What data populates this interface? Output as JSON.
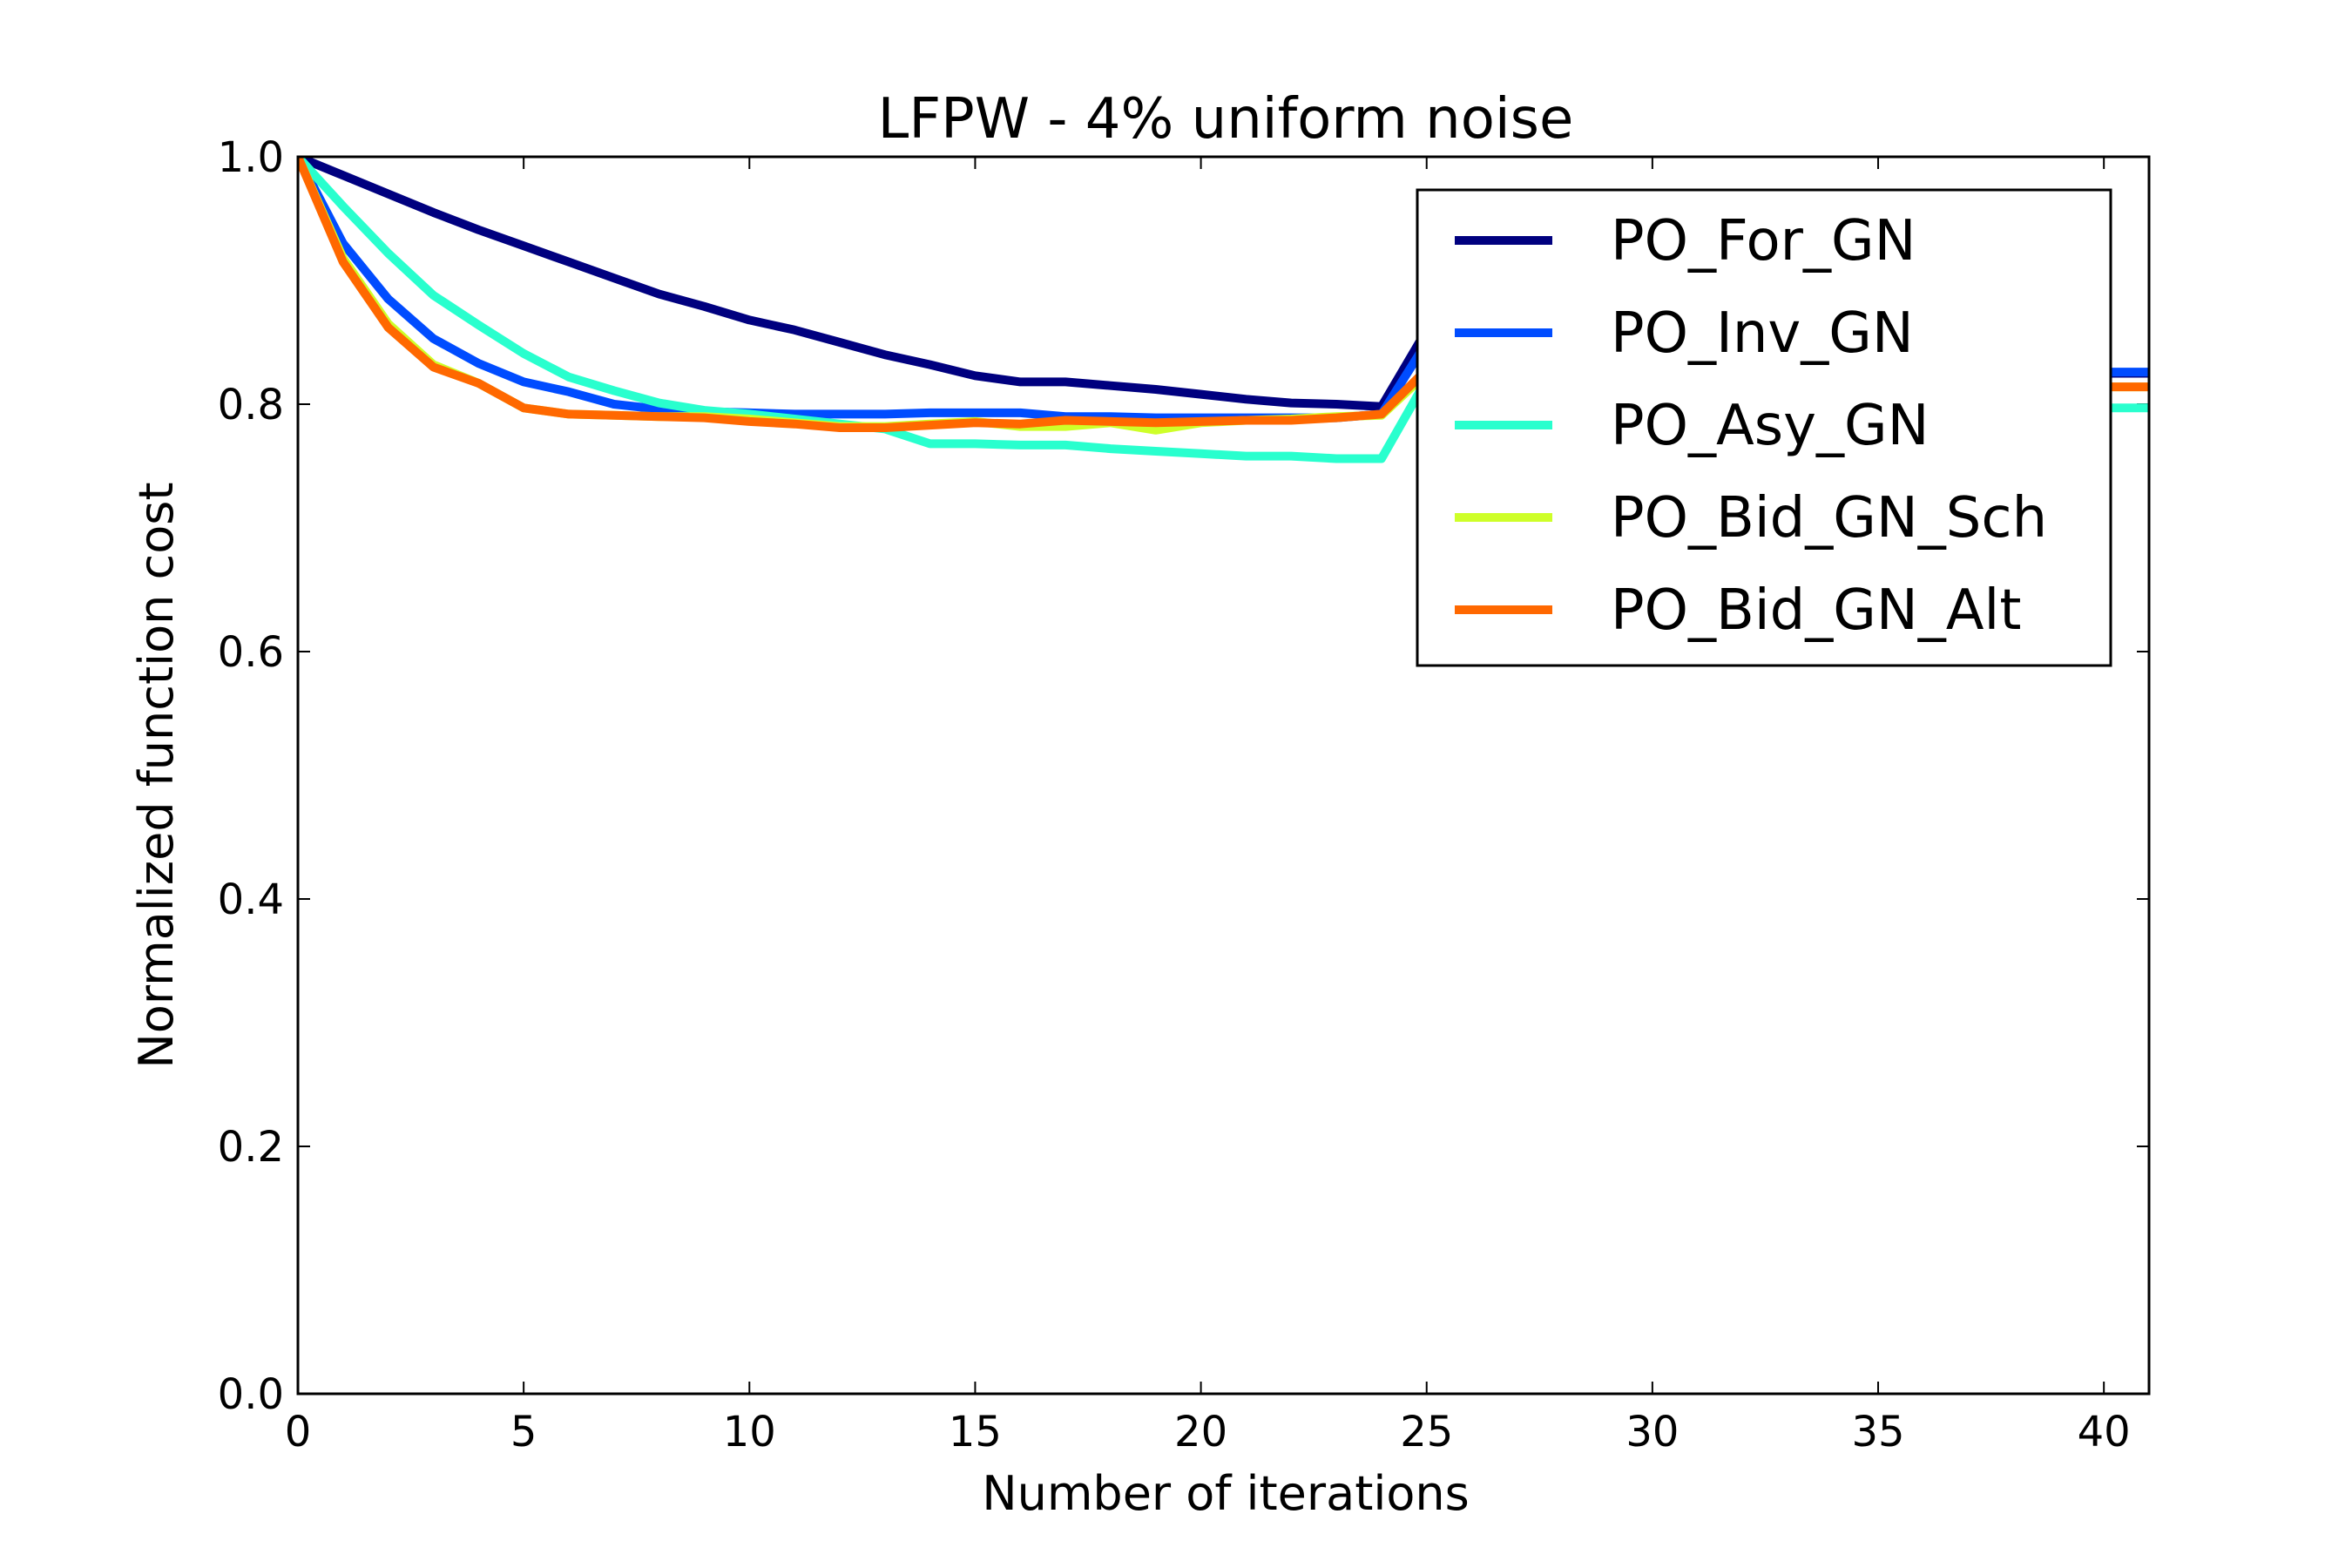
{
  "chart_data": {
    "type": "line",
    "title": "LFPW - 4% uniform noise",
    "xlabel": "Number of iterations",
    "ylabel": "Normalized function cost",
    "xlim": [
      0,
      41
    ],
    "ylim": [
      0,
      1.0
    ],
    "xticks": [
      0,
      5,
      10,
      15,
      20,
      25,
      30,
      35,
      40
    ],
    "yticks": [
      0.0,
      0.2,
      0.4,
      0.6,
      0.8,
      1.0
    ],
    "xtick_labels": [
      "0",
      "5",
      "10",
      "15",
      "20",
      "25",
      "30",
      "35",
      "40"
    ],
    "ytick_labels": [
      "0.0",
      "0.2",
      "0.4",
      "0.6",
      "0.8",
      "1.0"
    ],
    "grid": false,
    "legend_position": "top-right",
    "x": [
      0,
      1,
      2,
      3,
      4,
      5,
      6,
      7,
      8,
      9,
      10,
      11,
      12,
      13,
      14,
      15,
      16,
      17,
      18,
      19,
      20,
      21,
      22,
      23,
      24,
      25,
      26,
      27,
      28,
      29,
      30,
      31,
      32,
      33,
      34,
      35,
      36,
      37,
      38,
      39,
      40,
      41
    ],
    "series": [
      {
        "name": "PO_For_GN",
        "color": "#00007f",
        "values": [
          1.0,
          0.985,
          0.97,
          0.955,
          0.941,
          0.928,
          0.915,
          0.902,
          0.889,
          0.879,
          0.868,
          0.86,
          0.85,
          0.84,
          0.832,
          0.823,
          0.818,
          0.818,
          0.815,
          0.812,
          0.808,
          0.804,
          0.801,
          0.8,
          0.798,
          0.86,
          0.845,
          0.84,
          0.838,
          0.836,
          0.834,
          0.832,
          0.83,
          0.829,
          0.828,
          0.827,
          0.826,
          0.826,
          0.825,
          0.825,
          0.825,
          0.825
        ]
      },
      {
        "name": "PO_Inv_GN",
        "color": "#004cff",
        "values": [
          1.0,
          0.93,
          0.885,
          0.853,
          0.833,
          0.818,
          0.81,
          0.8,
          0.796,
          0.794,
          0.793,
          0.792,
          0.792,
          0.792,
          0.793,
          0.793,
          0.793,
          0.79,
          0.79,
          0.789,
          0.789,
          0.789,
          0.789,
          0.789,
          0.792,
          0.85,
          0.84,
          0.836,
          0.834,
          0.832,
          0.831,
          0.83,
          0.829,
          0.828,
          0.828,
          0.827,
          0.827,
          0.826,
          0.826,
          0.826,
          0.826,
          0.826
        ]
      },
      {
        "name": "PO_Asy_GN",
        "color": "#29ffce",
        "values": [
          1.0,
          0.96,
          0.922,
          0.888,
          0.864,
          0.841,
          0.822,
          0.811,
          0.801,
          0.795,
          0.792,
          0.788,
          0.784,
          0.78,
          0.768,
          0.768,
          0.767,
          0.767,
          0.764,
          0.762,
          0.76,
          0.758,
          0.758,
          0.756,
          0.756,
          0.82,
          0.81,
          0.806,
          0.804,
          0.802,
          0.8,
          0.799,
          0.798,
          0.798,
          0.797,
          0.797,
          0.797,
          0.797,
          0.797,
          0.797,
          0.797,
          0.797
        ]
      },
      {
        "name": "PO_Bid_GN_Sch",
        "color": "#ceff29",
        "values": [
          1.0,
          0.918,
          0.865,
          0.832,
          0.817,
          0.797,
          0.792,
          0.791,
          0.79,
          0.79,
          0.788,
          0.785,
          0.782,
          0.782,
          0.784,
          0.786,
          0.782,
          0.782,
          0.785,
          0.779,
          0.785,
          0.787,
          0.788,
          0.79,
          0.791,
          0.825,
          0.82,
          0.818,
          0.817,
          0.816,
          0.815,
          0.815,
          0.814,
          0.814,
          0.814,
          0.814,
          0.814,
          0.814,
          0.814,
          0.814,
          0.814,
          0.814
        ]
      },
      {
        "name": "PO_Bid_GN_Alt",
        "color": "#ff6800",
        "values": [
          1.0,
          0.915,
          0.862,
          0.83,
          0.817,
          0.797,
          0.792,
          0.791,
          0.79,
          0.789,
          0.786,
          0.784,
          0.781,
          0.781,
          0.783,
          0.785,
          0.784,
          0.787,
          0.786,
          0.785,
          0.786,
          0.787,
          0.787,
          0.789,
          0.792,
          0.828,
          0.822,
          0.82,
          0.818,
          0.817,
          0.816,
          0.815,
          0.815,
          0.814,
          0.814,
          0.814,
          0.814,
          0.814,
          0.814,
          0.814,
          0.814,
          0.814
        ]
      }
    ]
  }
}
